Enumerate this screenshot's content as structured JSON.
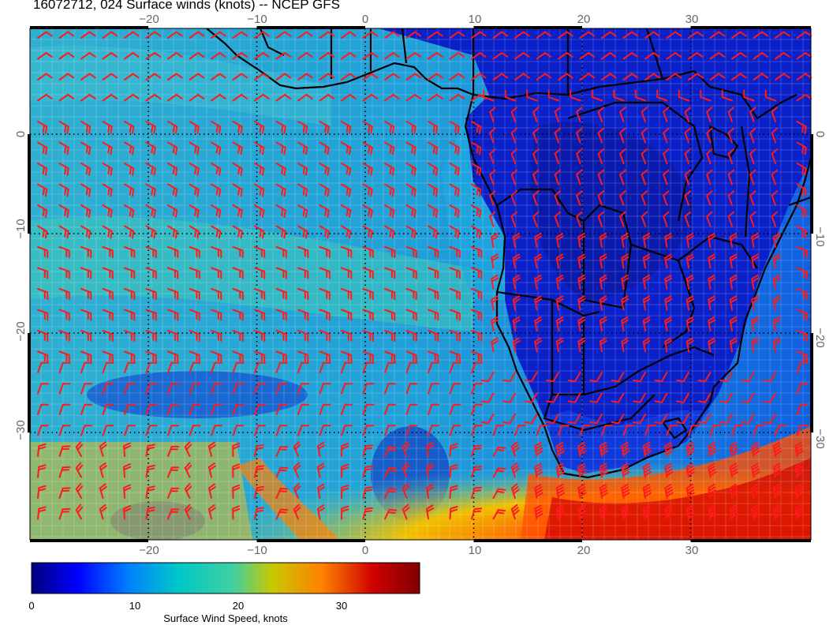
{
  "title": "16072712, 024 Surface winds (knots) -- NCEP GFS",
  "map": {
    "lon_labels": [
      "−20",
      "−10",
      "0",
      "10",
      "20",
      "30"
    ],
    "lat_labels": [
      "0",
      "−10",
      "−20",
      "−30"
    ],
    "lon_values": [
      -20,
      -10,
      0,
      10,
      20,
      30
    ],
    "lat_values": [
      0,
      -10,
      -20,
      -30
    ],
    "barb_color": "#ff1a1a",
    "coast_color": "#000000"
  },
  "colorbar": {
    "title": "Surface Wind Speed, knots",
    "ticks": [
      "0",
      "10",
      "20",
      "30"
    ],
    "tick_values": [
      0,
      10,
      20,
      30
    ],
    "range": [
      0,
      37
    ],
    "colors": [
      "#000080",
      "#0000ff",
      "#0080ff",
      "#00c8c8",
      "#40d0a0",
      "#c8c800",
      "#ff8000",
      "#d00000",
      "#800000"
    ]
  }
}
